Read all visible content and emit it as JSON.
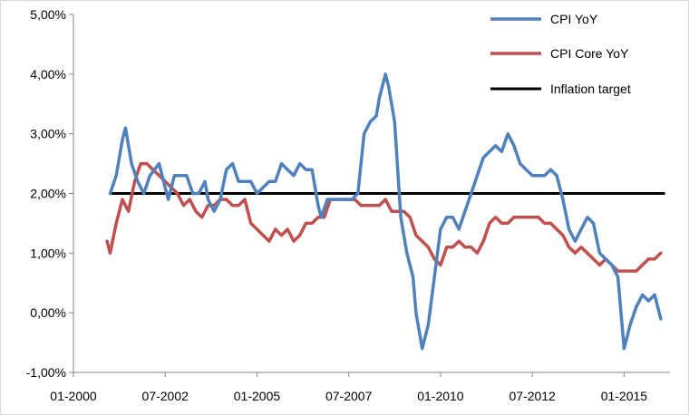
{
  "chart_data": {
    "type": "line",
    "title": "",
    "xlabel": "",
    "ylabel": "",
    "ylim": [
      -1.0,
      5.0
    ],
    "y_ticks": [
      "5,00%",
      "4,00%",
      "3,00%",
      "2,00%",
      "1,00%",
      "0,00%",
      "-1,00%"
    ],
    "x_ticks": [
      "01-2000",
      "07-2002",
      "01-2005",
      "07-2007",
      "01-2010",
      "07-2012",
      "01-2015"
    ],
    "grid": false,
    "legend_position": "top-right",
    "series": [
      {
        "name": "CPI YoY",
        "color": "#4f81bd",
        "points": [
          [
            "2001-01",
            2.0
          ],
          [
            "2001-03",
            2.3
          ],
          [
            "2001-05",
            2.9
          ],
          [
            "2001-06",
            3.1
          ],
          [
            "2001-08",
            2.5
          ],
          [
            "2001-10",
            2.2
          ],
          [
            "2001-12",
            2.0
          ],
          [
            "2002-02",
            2.3
          ],
          [
            "2002-05",
            2.5
          ],
          [
            "2002-07",
            2.1
          ],
          [
            "2002-08",
            1.9
          ],
          [
            "2002-10",
            2.3
          ],
          [
            "2002-12",
            2.3
          ],
          [
            "2003-02",
            2.3
          ],
          [
            "2003-04",
            2.0
          ],
          [
            "2003-06",
            2.0
          ],
          [
            "2003-08",
            2.2
          ],
          [
            "2003-09",
            1.9
          ],
          [
            "2003-11",
            1.7
          ],
          [
            "2004-01",
            1.9
          ],
          [
            "2004-03",
            2.4
          ],
          [
            "2004-05",
            2.5
          ],
          [
            "2004-07",
            2.2
          ],
          [
            "2004-09",
            2.2
          ],
          [
            "2004-11",
            2.2
          ],
          [
            "2005-01",
            2.0
          ],
          [
            "2005-03",
            2.1
          ],
          [
            "2005-05",
            2.2
          ],
          [
            "2005-07",
            2.2
          ],
          [
            "2005-09",
            2.5
          ],
          [
            "2005-11",
            2.4
          ],
          [
            "2006-01",
            2.3
          ],
          [
            "2006-03",
            2.5
          ],
          [
            "2006-05",
            2.4
          ],
          [
            "2006-07",
            2.4
          ],
          [
            "2006-09",
            1.8
          ],
          [
            "2006-10",
            1.6
          ],
          [
            "2006-12",
            1.9
          ],
          [
            "2007-02",
            1.9
          ],
          [
            "2007-04",
            1.9
          ],
          [
            "2007-06",
            1.9
          ],
          [
            "2007-08",
            1.9
          ],
          [
            "2007-10",
            2.0
          ],
          [
            "2007-12",
            3.0
          ],
          [
            "2008-02",
            3.2
          ],
          [
            "2008-04",
            3.3
          ],
          [
            "2008-05",
            3.6
          ],
          [
            "2008-07",
            4.0
          ],
          [
            "2008-08",
            3.8
          ],
          [
            "2008-10",
            3.2
          ],
          [
            "2008-12",
            1.6
          ],
          [
            "2009-02",
            1.0
          ],
          [
            "2009-04",
            0.6
          ],
          [
            "2009-05",
            0.0
          ],
          [
            "2009-07",
            -0.6
          ],
          [
            "2009-09",
            -0.2
          ],
          [
            "2009-11",
            0.6
          ],
          [
            "2010-01",
            1.4
          ],
          [
            "2010-03",
            1.6
          ],
          [
            "2010-05",
            1.6
          ],
          [
            "2010-07",
            1.4
          ],
          [
            "2010-09",
            1.7
          ],
          [
            "2010-11",
            2.0
          ],
          [
            "2011-01",
            2.3
          ],
          [
            "2011-03",
            2.6
          ],
          [
            "2011-05",
            2.7
          ],
          [
            "2011-07",
            2.8
          ],
          [
            "2011-09",
            2.7
          ],
          [
            "2011-11",
            3.0
          ],
          [
            "2012-01",
            2.8
          ],
          [
            "2012-03",
            2.5
          ],
          [
            "2012-05",
            2.4
          ],
          [
            "2012-07",
            2.3
          ],
          [
            "2012-09",
            2.3
          ],
          [
            "2012-11",
            2.3
          ],
          [
            "2013-01",
            2.4
          ],
          [
            "2013-03",
            2.3
          ],
          [
            "2013-05",
            1.9
          ],
          [
            "2013-07",
            1.4
          ],
          [
            "2013-09",
            1.2
          ],
          [
            "2013-11",
            1.4
          ],
          [
            "2014-01",
            1.6
          ],
          [
            "2014-03",
            1.5
          ],
          [
            "2014-05",
            1.0
          ],
          [
            "2014-07",
            0.9
          ],
          [
            "2014-09",
            0.8
          ],
          [
            "2014-11",
            0.6
          ],
          [
            "2015-01",
            -0.6
          ],
          [
            "2015-03",
            -0.2
          ],
          [
            "2015-05",
            0.1
          ],
          [
            "2015-07",
            0.3
          ],
          [
            "2015-09",
            0.2
          ],
          [
            "2015-11",
            0.3
          ],
          [
            "2016-01",
            -0.1
          ]
        ]
      },
      {
        "name": "CPI Core YoY",
        "color": "#c0504d",
        "points": [
          [
            "2000-12",
            1.2
          ],
          [
            "2001-01",
            1.0
          ],
          [
            "2001-03",
            1.5
          ],
          [
            "2001-05",
            1.9
          ],
          [
            "2001-07",
            1.7
          ],
          [
            "2001-09",
            2.2
          ],
          [
            "2001-11",
            2.5
          ],
          [
            "2002-01",
            2.5
          ],
          [
            "2002-03",
            2.4
          ],
          [
            "2002-05",
            2.3
          ],
          [
            "2002-07",
            2.2
          ],
          [
            "2002-09",
            2.1
          ],
          [
            "2002-11",
            2.0
          ],
          [
            "2003-01",
            1.8
          ],
          [
            "2003-03",
            1.9
          ],
          [
            "2003-05",
            1.7
          ],
          [
            "2003-07",
            1.6
          ],
          [
            "2003-09",
            1.8
          ],
          [
            "2003-11",
            1.8
          ],
          [
            "2004-01",
            1.9
          ],
          [
            "2004-03",
            1.9
          ],
          [
            "2004-05",
            1.8
          ],
          [
            "2004-07",
            1.8
          ],
          [
            "2004-09",
            1.9
          ],
          [
            "2004-11",
            1.5
          ],
          [
            "2005-01",
            1.4
          ],
          [
            "2005-03",
            1.3
          ],
          [
            "2005-05",
            1.2
          ],
          [
            "2005-07",
            1.4
          ],
          [
            "2005-09",
            1.3
          ],
          [
            "2005-11",
            1.4
          ],
          [
            "2006-01",
            1.2
          ],
          [
            "2006-03",
            1.3
          ],
          [
            "2006-05",
            1.5
          ],
          [
            "2006-07",
            1.5
          ],
          [
            "2006-09",
            1.6
          ],
          [
            "2006-11",
            1.6
          ],
          [
            "2007-01",
            1.9
          ],
          [
            "2007-03",
            1.9
          ],
          [
            "2007-05",
            1.9
          ],
          [
            "2007-07",
            1.9
          ],
          [
            "2007-09",
            1.9
          ],
          [
            "2007-11",
            1.8
          ],
          [
            "2008-01",
            1.8
          ],
          [
            "2008-03",
            1.8
          ],
          [
            "2008-05",
            1.8
          ],
          [
            "2008-07",
            1.9
          ],
          [
            "2008-09",
            1.7
          ],
          [
            "2008-11",
            1.7
          ],
          [
            "2009-01",
            1.7
          ],
          [
            "2009-03",
            1.6
          ],
          [
            "2009-05",
            1.3
          ],
          [
            "2009-07",
            1.2
          ],
          [
            "2009-09",
            1.1
          ],
          [
            "2009-11",
            0.9
          ],
          [
            "2010-01",
            0.8
          ],
          [
            "2010-03",
            1.1
          ],
          [
            "2010-05",
            1.1
          ],
          [
            "2010-07",
            1.2
          ],
          [
            "2010-09",
            1.1
          ],
          [
            "2010-11",
            1.1
          ],
          [
            "2011-01",
            1.0
          ],
          [
            "2011-03",
            1.2
          ],
          [
            "2011-05",
            1.5
          ],
          [
            "2011-07",
            1.6
          ],
          [
            "2011-09",
            1.5
          ],
          [
            "2011-11",
            1.5
          ],
          [
            "2012-01",
            1.6
          ],
          [
            "2012-03",
            1.6
          ],
          [
            "2012-05",
            1.6
          ],
          [
            "2012-07",
            1.6
          ],
          [
            "2012-09",
            1.6
          ],
          [
            "2012-11",
            1.5
          ],
          [
            "2013-01",
            1.5
          ],
          [
            "2013-03",
            1.4
          ],
          [
            "2013-05",
            1.3
          ],
          [
            "2013-07",
            1.1
          ],
          [
            "2013-09",
            1.0
          ],
          [
            "2013-11",
            1.1
          ],
          [
            "2014-01",
            1.0
          ],
          [
            "2014-03",
            0.9
          ],
          [
            "2014-05",
            0.8
          ],
          [
            "2014-07",
            0.9
          ],
          [
            "2014-09",
            0.8
          ],
          [
            "2014-11",
            0.7
          ],
          [
            "2015-01",
            0.7
          ],
          [
            "2015-03",
            0.7
          ],
          [
            "2015-05",
            0.7
          ],
          [
            "2015-07",
            0.8
          ],
          [
            "2015-09",
            0.9
          ],
          [
            "2015-11",
            0.9
          ],
          [
            "2016-01",
            1.0
          ]
        ]
      },
      {
        "name": "Inflation target",
        "color": "#000000",
        "points": [
          [
            "2001-01",
            2.0
          ],
          [
            "2016-02",
            2.0
          ]
        ]
      }
    ]
  }
}
